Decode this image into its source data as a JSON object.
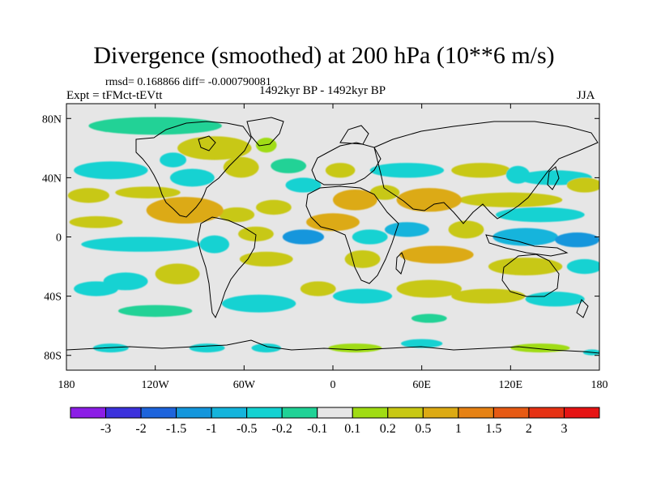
{
  "header": {
    "title": "Divergence (smoothed) at 200 hPa (10**6 m/s)",
    "stats": "rmsd= 0.168866 diff= -0.000790081",
    "experiment": "Expt = tFMct-tEVtt",
    "period": "1492kyr BP - 1492kyr BP",
    "season": "JJA"
  },
  "chart_data": {
    "type": "heatmap",
    "title": "Divergence (smoothed) at 200 hPa (10**6 m/s)",
    "xlabel": "",
    "ylabel": "",
    "xlim": [
      -180,
      180
    ],
    "ylim": [
      -90,
      90
    ],
    "x_ticks": [
      {
        "value": -180,
        "label": "180"
      },
      {
        "value": -120,
        "label": "120W"
      },
      {
        "value": -60,
        "label": "60W"
      },
      {
        "value": 0,
        "label": "0"
      },
      {
        "value": 60,
        "label": "60E"
      },
      {
        "value": 120,
        "label": "120E"
      },
      {
        "value": 180,
        "label": "180"
      }
    ],
    "y_ticks": [
      {
        "value": 80,
        "label": "80N"
      },
      {
        "value": 40,
        "label": "40N"
      },
      {
        "value": 0,
        "label": "0"
      },
      {
        "value": -40,
        "label": "40S"
      },
      {
        "value": -80,
        "label": "80S"
      }
    ],
    "colorbar": {
      "levels": [
        "-3",
        "-2",
        "-1.5",
        "-1",
        "-0.5",
        "-0.2",
        "-0.1",
        "0.1",
        "0.2",
        "0.5",
        "1",
        "1.5",
        "2",
        "3"
      ],
      "colors": [
        "#8c1ee6",
        "#3c32dc",
        "#1e64dc",
        "#1496dc",
        "#14b4dc",
        "#14d2d2",
        "#20d296",
        "#e6e6e6",
        "#a0dc14",
        "#c8c814",
        "#dcaa14",
        "#e68214",
        "#e65a14",
        "#e63214",
        "#e61414"
      ]
    },
    "blobs": [
      {
        "lon": -120,
        "lat": 75,
        "r_lon": 45,
        "r_lat": 6,
        "value": -0.15
      },
      {
        "lon": -80,
        "lat": 60,
        "r_lon": 25,
        "r_lat": 8,
        "value": 0.3
      },
      {
        "lon": -62,
        "lat": 47,
        "r_lon": 12,
        "r_lat": 7,
        "value": 0.3
      },
      {
        "lon": -108,
        "lat": 52,
        "r_lon": 9,
        "r_lat": 5,
        "value": -0.3
      },
      {
        "lon": -45,
        "lat": 62,
        "r_lon": 7,
        "r_lat": 5,
        "value": 0.15
      },
      {
        "lon": -95,
        "lat": 40,
        "r_lon": 15,
        "r_lat": 6,
        "value": -0.3
      },
      {
        "lon": -30,
        "lat": 48,
        "r_lon": 12,
        "r_lat": 5,
        "value": -0.15
      },
      {
        "lon": -150,
        "lat": 45,
        "r_lon": 25,
        "r_lat": 6,
        "value": -0.3
      },
      {
        "lon": -20,
        "lat": 35,
        "r_lon": 12,
        "r_lat": 5,
        "value": -0.3
      },
      {
        "lon": -165,
        "lat": 28,
        "r_lon": 14,
        "r_lat": 5,
        "value": 0.3
      },
      {
        "lon": -125,
        "lat": 30,
        "r_lon": 22,
        "r_lat": 4,
        "value": 0.3
      },
      {
        "lon": -160,
        "lat": 10,
        "r_lon": 18,
        "r_lat": 4,
        "value": 0.3
      },
      {
        "lon": -100,
        "lat": 18,
        "r_lon": 26,
        "r_lat": 9,
        "value": 0.75
      },
      {
        "lon": -65,
        "lat": 15,
        "r_lon": 12,
        "r_lat": 5,
        "value": 0.3
      },
      {
        "lon": -52,
        "lat": 2,
        "r_lon": 12,
        "r_lat": 5,
        "value": 0.3
      },
      {
        "lon": -40,
        "lat": 20,
        "r_lon": 12,
        "r_lat": 5,
        "value": 0.3
      },
      {
        "lon": -130,
        "lat": -5,
        "r_lon": 40,
        "r_lat": 5,
        "value": -0.3
      },
      {
        "lon": -80,
        "lat": -5,
        "r_lon": 10,
        "r_lat": 6,
        "value": -0.3
      },
      {
        "lon": -20,
        "lat": 0,
        "r_lon": 14,
        "r_lat": 5,
        "value": -1.2
      },
      {
        "lon": -45,
        "lat": -15,
        "r_lon": 18,
        "r_lat": 5,
        "value": 0.3
      },
      {
        "lon": -105,
        "lat": -25,
        "r_lon": 15,
        "r_lat": 7,
        "value": 0.3
      },
      {
        "lon": -140,
        "lat": -30,
        "r_lon": 15,
        "r_lat": 6,
        "value": -0.3
      },
      {
        "lon": -160,
        "lat": -35,
        "r_lon": 15,
        "r_lat": 5,
        "value": -0.3
      },
      {
        "lon": -50,
        "lat": -45,
        "r_lon": 25,
        "r_lat": 6,
        "value": -0.3
      },
      {
        "lon": -10,
        "lat": -35,
        "r_lon": 12,
        "r_lat": 5,
        "value": 0.3
      },
      {
        "lon": -120,
        "lat": -50,
        "r_lon": 25,
        "r_lat": 4,
        "value": -0.15
      },
      {
        "lon": 5,
        "lat": 45,
        "r_lon": 10,
        "r_lat": 5,
        "value": 0.3
      },
      {
        "lon": 50,
        "lat": 45,
        "r_lon": 25,
        "r_lat": 5,
        "value": -0.3
      },
      {
        "lon": 100,
        "lat": 45,
        "r_lon": 20,
        "r_lat": 5,
        "value": 0.3
      },
      {
        "lon": 125,
        "lat": 42,
        "r_lon": 8,
        "r_lat": 6,
        "value": -0.3
      },
      {
        "lon": 150,
        "lat": 40,
        "r_lon": 25,
        "r_lat": 5,
        "value": -0.3
      },
      {
        "lon": 15,
        "lat": 25,
        "r_lon": 15,
        "r_lat": 7,
        "value": 0.75
      },
      {
        "lon": 35,
        "lat": 30,
        "r_lon": 10,
        "r_lat": 5,
        "value": 0.3
      },
      {
        "lon": 65,
        "lat": 25,
        "r_lon": 22,
        "r_lat": 8,
        "value": 0.75
      },
      {
        "lon": 120,
        "lat": 25,
        "r_lon": 35,
        "r_lat": 5,
        "value": 0.3
      },
      {
        "lon": 170,
        "lat": 35,
        "r_lon": 12,
        "r_lat": 5,
        "value": 0.3
      },
      {
        "lon": 140,
        "lat": 15,
        "r_lon": 30,
        "r_lat": 5,
        "value": -0.3
      },
      {
        "lon": 0,
        "lat": 10,
        "r_lon": 18,
        "r_lat": 6,
        "value": 0.75
      },
      {
        "lon": 25,
        "lat": 0,
        "r_lon": 12,
        "r_lat": 5,
        "value": -0.3
      },
      {
        "lon": 50,
        "lat": 5,
        "r_lon": 15,
        "r_lat": 5,
        "value": -0.75
      },
      {
        "lon": 90,
        "lat": 5,
        "r_lon": 12,
        "r_lat": 6,
        "value": 0.3
      },
      {
        "lon": 130,
        "lat": 0,
        "r_lon": 22,
        "r_lat": 6,
        "value": -0.75
      },
      {
        "lon": 165,
        "lat": -2,
        "r_lon": 15,
        "r_lat": 5,
        "value": -1.2
      },
      {
        "lon": 20,
        "lat": -15,
        "r_lon": 12,
        "r_lat": 6,
        "value": 0.3
      },
      {
        "lon": 70,
        "lat": -12,
        "r_lon": 25,
        "r_lat": 6,
        "value": 0.75
      },
      {
        "lon": 130,
        "lat": -20,
        "r_lon": 25,
        "r_lat": 6,
        "value": 0.3
      },
      {
        "lon": 170,
        "lat": -20,
        "r_lon": 12,
        "r_lat": 5,
        "value": -0.3
      },
      {
        "lon": 20,
        "lat": -40,
        "r_lon": 20,
        "r_lat": 5,
        "value": -0.3
      },
      {
        "lon": 65,
        "lat": -35,
        "r_lon": 22,
        "r_lat": 6,
        "value": 0.3
      },
      {
        "lon": 105,
        "lat": -40,
        "r_lon": 25,
        "r_lat": 5,
        "value": 0.3
      },
      {
        "lon": 150,
        "lat": -42,
        "r_lon": 20,
        "r_lat": 5,
        "value": -0.3
      },
      {
        "lon": 65,
        "lat": -55,
        "r_lon": 12,
        "r_lat": 3,
        "value": -0.15
      },
      {
        "lon": -150,
        "lat": -75,
        "r_lon": 12,
        "r_lat": 3,
        "value": -0.3
      },
      {
        "lon": -85,
        "lat": -75,
        "r_lon": 12,
        "r_lat": 3,
        "value": -0.3
      },
      {
        "lon": -45,
        "lat": -75,
        "r_lon": 10,
        "r_lat": 3,
        "value": -0.3
      },
      {
        "lon": 15,
        "lat": -75,
        "r_lon": 18,
        "r_lat": 3,
        "value": 0.15
      },
      {
        "lon": 60,
        "lat": -72,
        "r_lon": 14,
        "r_lat": 3,
        "value": -0.3
      },
      {
        "lon": 140,
        "lat": -75,
        "r_lon": 20,
        "r_lat": 3,
        "value": 0.15
      },
      {
        "lon": 175,
        "lat": -78,
        "r_lon": 6,
        "r_lat": 2,
        "value": -0.3
      }
    ]
  }
}
